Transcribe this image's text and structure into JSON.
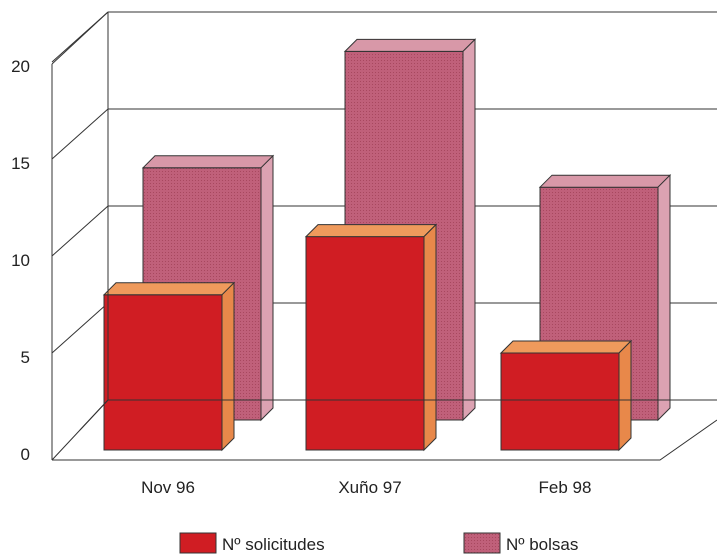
{
  "chart_data": {
    "type": "bar",
    "categories": [
      "Nov 96",
      "Xuño 97",
      "Feb 98"
    ],
    "series": [
      {
        "name": "Nº solicitudes",
        "values": [
          8,
          11,
          5
        ],
        "color": "#d01d23",
        "top_color": "#ef9a5c",
        "side_color": "#e8884a"
      },
      {
        "name": "Nº bolsas",
        "values": [
          13,
          19,
          12
        ],
        "color": "#c0607a",
        "top_color": "#d898a8",
        "side_color": "#dca2b2"
      }
    ],
    "yticks": [
      0,
      5,
      10,
      15,
      20
    ],
    "ylim": [
      0,
      21
    ],
    "grid": true,
    "legend_position": "bottom",
    "title": "",
    "xlabel": "",
    "ylabel": ""
  }
}
